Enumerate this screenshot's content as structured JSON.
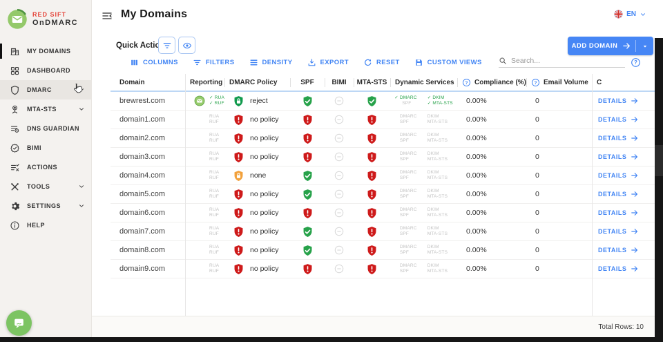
{
  "colors": {
    "accent_blue": "#4285f4",
    "success_green": "#27a24a",
    "error_red": "#ce1a1a",
    "warning_orange": "#f2a13c",
    "brand_red": "#e4473c",
    "brand_green": "#94c96a"
  },
  "brand": {
    "line1": "RED SIFT",
    "line2": "OnDMARC"
  },
  "sidebar": {
    "items": [
      {
        "label": "MY DOMAINS",
        "icon": "buildings-icon",
        "active": true,
        "expandable": false,
        "hover": false
      },
      {
        "label": "DASHBOARD",
        "icon": "dashboard-grid-icon",
        "active": false,
        "expandable": false,
        "hover": false
      },
      {
        "label": "DMARC",
        "icon": "shield-icon",
        "active": false,
        "expandable": true,
        "hover": true
      },
      {
        "label": "MTA-STS",
        "icon": "location-pin-icon",
        "active": false,
        "expandable": true,
        "hover": false
      },
      {
        "label": "DNS GUARDIAN",
        "icon": "dns-list-icon",
        "active": false,
        "expandable": false,
        "hover": false
      },
      {
        "label": "BIMI",
        "icon": "bimi-badge-icon",
        "active": false,
        "expandable": false,
        "hover": false
      },
      {
        "label": "ACTIONS",
        "icon": "actions-checklist-icon",
        "active": false,
        "expandable": false,
        "hover": false
      },
      {
        "label": "TOOLS",
        "icon": "tools-icon",
        "active": false,
        "expandable": true,
        "hover": false
      },
      {
        "label": "SETTINGS",
        "icon": "settings-gear-icon",
        "active": false,
        "expandable": true,
        "hover": false
      },
      {
        "label": "HELP",
        "icon": "help-info-icon",
        "active": false,
        "expandable": false,
        "hover": false
      }
    ]
  },
  "header": {
    "title": "My Domains",
    "language": "EN"
  },
  "quick_actions": {
    "label": "Quick Actions"
  },
  "add_domain": {
    "label": "ADD DOMAIN"
  },
  "toolbar": {
    "items": [
      {
        "label": "COLUMNS",
        "icon": "columns-icon"
      },
      {
        "label": "FILTERS",
        "icon": "filter-icon"
      },
      {
        "label": "DENSITY",
        "icon": "density-icon"
      },
      {
        "label": "EXPORT",
        "icon": "export-icon"
      },
      {
        "label": "RESET",
        "icon": "reset-icon"
      },
      {
        "label": "CUSTOM VIEWS",
        "icon": "save-icon"
      }
    ]
  },
  "search": {
    "placeholder": "Search..."
  },
  "table": {
    "columns": [
      "Domain",
      "Reporting",
      "DMARC Policy",
      "SPF",
      "BIMI",
      "MTA-STS",
      "Dynamic Services",
      "Compliance (%)",
      "Email Volume",
      "C"
    ],
    "help_column_indexes": [
      7,
      8
    ],
    "labels": {
      "rua": "RUA",
      "ruf": "RUF",
      "dynamic": [
        "DMARC",
        "SPF",
        "DKIM",
        "MTA-STS"
      ],
      "details": "DETAILS"
    },
    "rows": [
      {
        "domain": "brewrest.com",
        "reporting_verified": true,
        "policy": "reject",
        "policy_variant": "reject",
        "spf": "good",
        "bimi": "neutral",
        "mta_sts": "good",
        "dynamic_checks": [
          true,
          false,
          true,
          true
        ],
        "compliance": "0.00%",
        "email_volume": "0"
      },
      {
        "domain": "domain1.com",
        "reporting_verified": false,
        "policy": "no policy",
        "policy_variant": "bad",
        "spf": "bad",
        "bimi": "neutral",
        "mta_sts": "bad",
        "dynamic_checks": [
          false,
          false,
          false,
          false
        ],
        "compliance": "0.00%",
        "email_volume": "0"
      },
      {
        "domain": "domain2.com",
        "reporting_verified": false,
        "policy": "no policy",
        "policy_variant": "bad",
        "spf": "bad",
        "bimi": "neutral",
        "mta_sts": "bad",
        "dynamic_checks": [
          false,
          false,
          false,
          false
        ],
        "compliance": "0.00%",
        "email_volume": "0"
      },
      {
        "domain": "domain3.com",
        "reporting_verified": false,
        "policy": "no policy",
        "policy_variant": "bad",
        "spf": "bad",
        "bimi": "neutral",
        "mta_sts": "bad",
        "dynamic_checks": [
          false,
          false,
          false,
          false
        ],
        "compliance": "0.00%",
        "email_volume": "0"
      },
      {
        "domain": "domain4.com",
        "reporting_verified": false,
        "policy": "none",
        "policy_variant": "warn",
        "spf": "good",
        "bimi": "neutral",
        "mta_sts": "bad",
        "dynamic_checks": [
          false,
          false,
          false,
          false
        ],
        "compliance": "0.00%",
        "email_volume": "0"
      },
      {
        "domain": "domain5.com",
        "reporting_verified": false,
        "policy": "no policy",
        "policy_variant": "bad",
        "spf": "good",
        "bimi": "neutral",
        "mta_sts": "bad",
        "dynamic_checks": [
          false,
          false,
          false,
          false
        ],
        "compliance": "0.00%",
        "email_volume": "0"
      },
      {
        "domain": "domain6.com",
        "reporting_verified": false,
        "policy": "no policy",
        "policy_variant": "bad",
        "spf": "bad",
        "bimi": "neutral",
        "mta_sts": "bad",
        "dynamic_checks": [
          false,
          false,
          false,
          false
        ],
        "compliance": "0.00%",
        "email_volume": "0"
      },
      {
        "domain": "domain7.com",
        "reporting_verified": false,
        "policy": "no policy",
        "policy_variant": "bad",
        "spf": "good",
        "bimi": "neutral",
        "mta_sts": "bad",
        "dynamic_checks": [
          false,
          false,
          false,
          false
        ],
        "compliance": "0.00%",
        "email_volume": "0"
      },
      {
        "domain": "domain8.com",
        "reporting_verified": false,
        "policy": "no policy",
        "policy_variant": "bad",
        "spf": "good",
        "bimi": "neutral",
        "mta_sts": "bad",
        "dynamic_checks": [
          false,
          false,
          false,
          false
        ],
        "compliance": "0.00%",
        "email_volume": "0"
      },
      {
        "domain": "domain9.com",
        "reporting_verified": false,
        "policy": "no policy",
        "policy_variant": "bad",
        "spf": "bad",
        "bimi": "neutral",
        "mta_sts": "bad",
        "dynamic_checks": [
          false,
          false,
          false,
          false
        ],
        "compliance": "0.00%",
        "email_volume": "0"
      }
    ]
  },
  "footer": {
    "total_rows": "Total Rows: 10"
  }
}
